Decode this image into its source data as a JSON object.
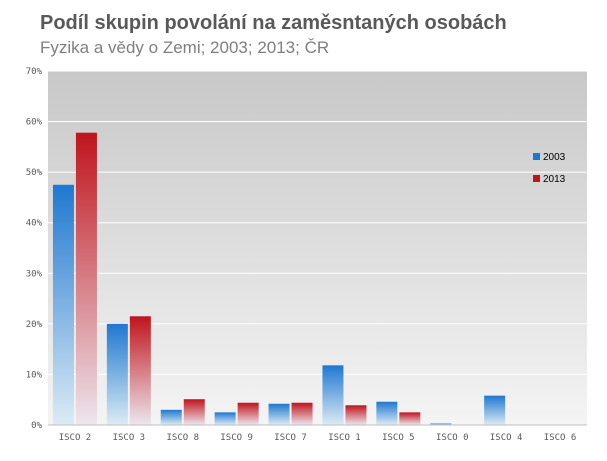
{
  "colors": {
    "series_2003": "#1f78d0",
    "series_2013": "#c0141c",
    "plot_bg_top": "#c8c8c8",
    "plot_bg_bottom": "#f4f4f4",
    "grid": "#ffffff"
  },
  "chart_data": {
    "type": "bar",
    "title": "Podíl skupin povolání na zaměsntaných osobách",
    "subtitle": "Fyzika a vědy o Zemi; 2003; 2013; ČR",
    "categories": [
      "ISCO 2",
      "ISCO 3",
      "ISCO 8",
      "ISCO 9",
      "ISCO 7",
      "ISCO 1",
      "ISCO 5",
      "ISCO 0",
      "ISCO 4",
      "ISCO 6"
    ],
    "series": [
      {
        "name": "2003",
        "values": [
          47.5,
          20.0,
          3.0,
          2.5,
          4.2,
          11.8,
          4.6,
          0.3,
          5.8,
          0.0
        ]
      },
      {
        "name": "2013",
        "values": [
          57.8,
          21.5,
          5.1,
          4.4,
          4.4,
          3.9,
          2.5,
          0.0,
          0.0,
          0.0
        ]
      }
    ],
    "ylim": [
      0,
      70
    ],
    "yticks": [
      "0%",
      "10%",
      "20%",
      "30%",
      "40%",
      "50%",
      "60%",
      "70%"
    ],
    "grid": true,
    "legend_position": "right"
  }
}
